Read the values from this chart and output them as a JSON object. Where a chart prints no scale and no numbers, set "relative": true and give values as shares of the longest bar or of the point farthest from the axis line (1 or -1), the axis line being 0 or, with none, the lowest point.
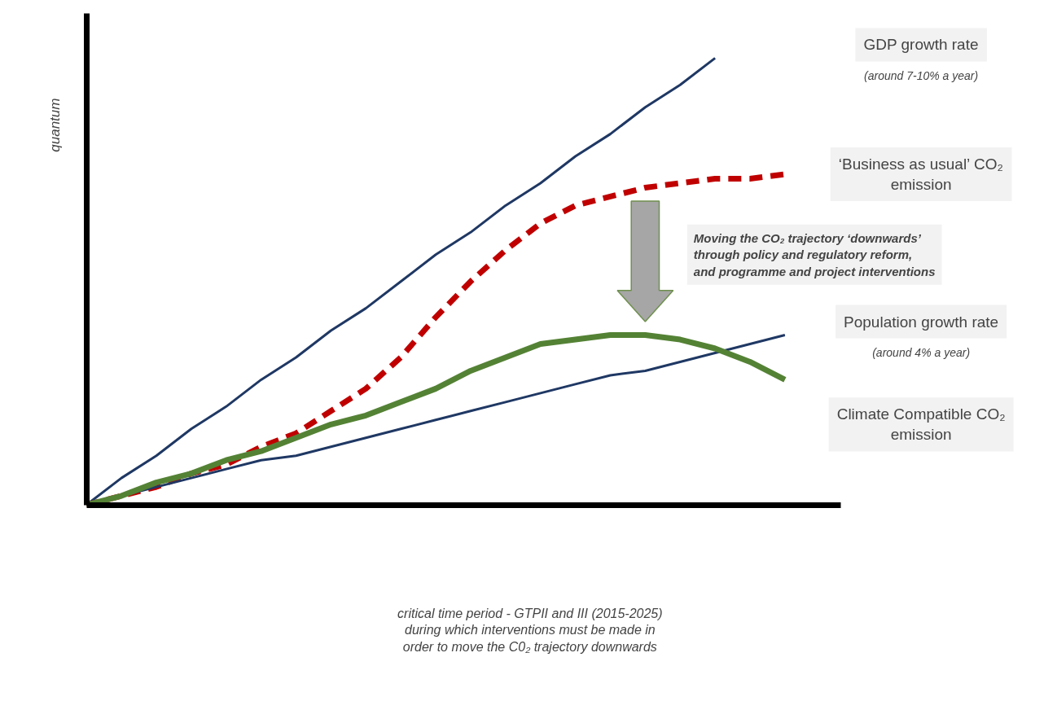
{
  "chart_data": {
    "type": "line",
    "relative": true,
    "ylabel": "quantum",
    "legend": false,
    "grid": false,
    "categories": [
      null,
      null,
      null,
      null,
      null,
      null,
      null,
      null,
      null,
      null,
      null,
      null,
      null,
      null,
      null,
      null,
      null,
      null,
      null,
      null,
      null
    ],
    "series": [
      {
        "name": "GDP growth rate",
        "color": "#1f3864",
        "line_style": "solid",
        "values": [
          0,
          0.06,
          0.11,
          0.17,
          0.22,
          0.28,
          0.33,
          0.39,
          0.44,
          0.5,
          0.56,
          0.61,
          0.67,
          0.72,
          0.78,
          0.83,
          0.89,
          0.94,
          1,
          null,
          null
        ]
      },
      {
        "name": "‘Business as usual’ CO₂ emission",
        "color": "#c00000",
        "line_style": "dashed",
        "values": [
          0,
          0.02,
          0.04,
          0.07,
          0.09,
          0.13,
          0.16,
          0.21,
          0.26,
          0.33,
          0.42,
          0.5,
          0.57,
          0.63,
          0.67,
          0.69,
          0.71,
          0.72,
          0.73,
          0.73,
          0.74
        ]
      },
      {
        "name": "Population growth rate",
        "color": "#1f3864",
        "line_style": "solid",
        "values": [
          0,
          0.02,
          0.04,
          0.06,
          0.08,
          0.1,
          0.11,
          0.13,
          0.15,
          0.17,
          0.19,
          0.21,
          0.23,
          0.25,
          0.27,
          0.29,
          0.3,
          0.32,
          0.34,
          0.36,
          0.38
        ]
      },
      {
        "name": "Climate Compatible CO₂ emission",
        "color": "#548235",
        "line_style": "solid",
        "values": [
          0,
          0.02,
          0.05,
          0.07,
          0.1,
          0.12,
          0.15,
          0.18,
          0.2,
          0.23,
          0.26,
          0.3,
          0.33,
          0.36,
          0.37,
          0.38,
          0.38,
          0.37,
          0.35,
          0.32,
          0.28
        ]
      }
    ],
    "annotations": [
      "(around 7-10% a year)",
      "(around 4% a year)",
      "Moving the CO₂ trajectory ‘downwards’\nthrough policy and regulatory reform,\nand programme and project interventions",
      "critical time period - GTPII and III (2015-2025)\nduring which interventions must be made in\norder to move the C0₂ trajectory downwards"
    ]
  }
}
